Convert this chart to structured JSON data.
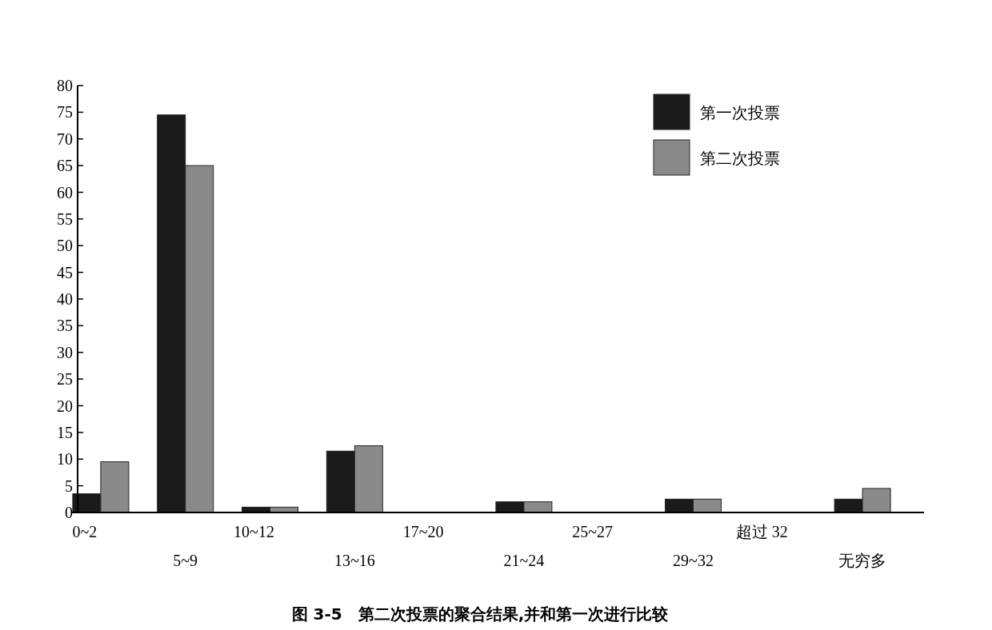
{
  "chart_data": {
    "type": "bar",
    "title": "图 3-5　第二次投票的聚合结果,并和第一次进行比较",
    "categories": [
      "0~2",
      "5~9",
      "10~12",
      "13~16",
      "17~20",
      "21~24",
      "25~27",
      "29~32",
      "超过 32",
      "无穷多"
    ],
    "series": [
      {
        "name": "第一次投票",
        "color": "#1a1a1a",
        "values": [
          3.5,
          74.5,
          1,
          11.5,
          0,
          2,
          0,
          2.5,
          0,
          2.5
        ]
      },
      {
        "name": "第二次投票",
        "color": "#8a8a8a",
        "values": [
          9.5,
          65,
          1,
          12.5,
          0,
          2,
          0,
          2.5,
          0,
          4.5
        ]
      }
    ],
    "ylim": [
      0,
      80
    ],
    "yticks": [
      0,
      5,
      10,
      15,
      20,
      25,
      30,
      35,
      40,
      45,
      50,
      55,
      60,
      65,
      70,
      75,
      80
    ],
    "grid": false,
    "legend": "top right"
  }
}
